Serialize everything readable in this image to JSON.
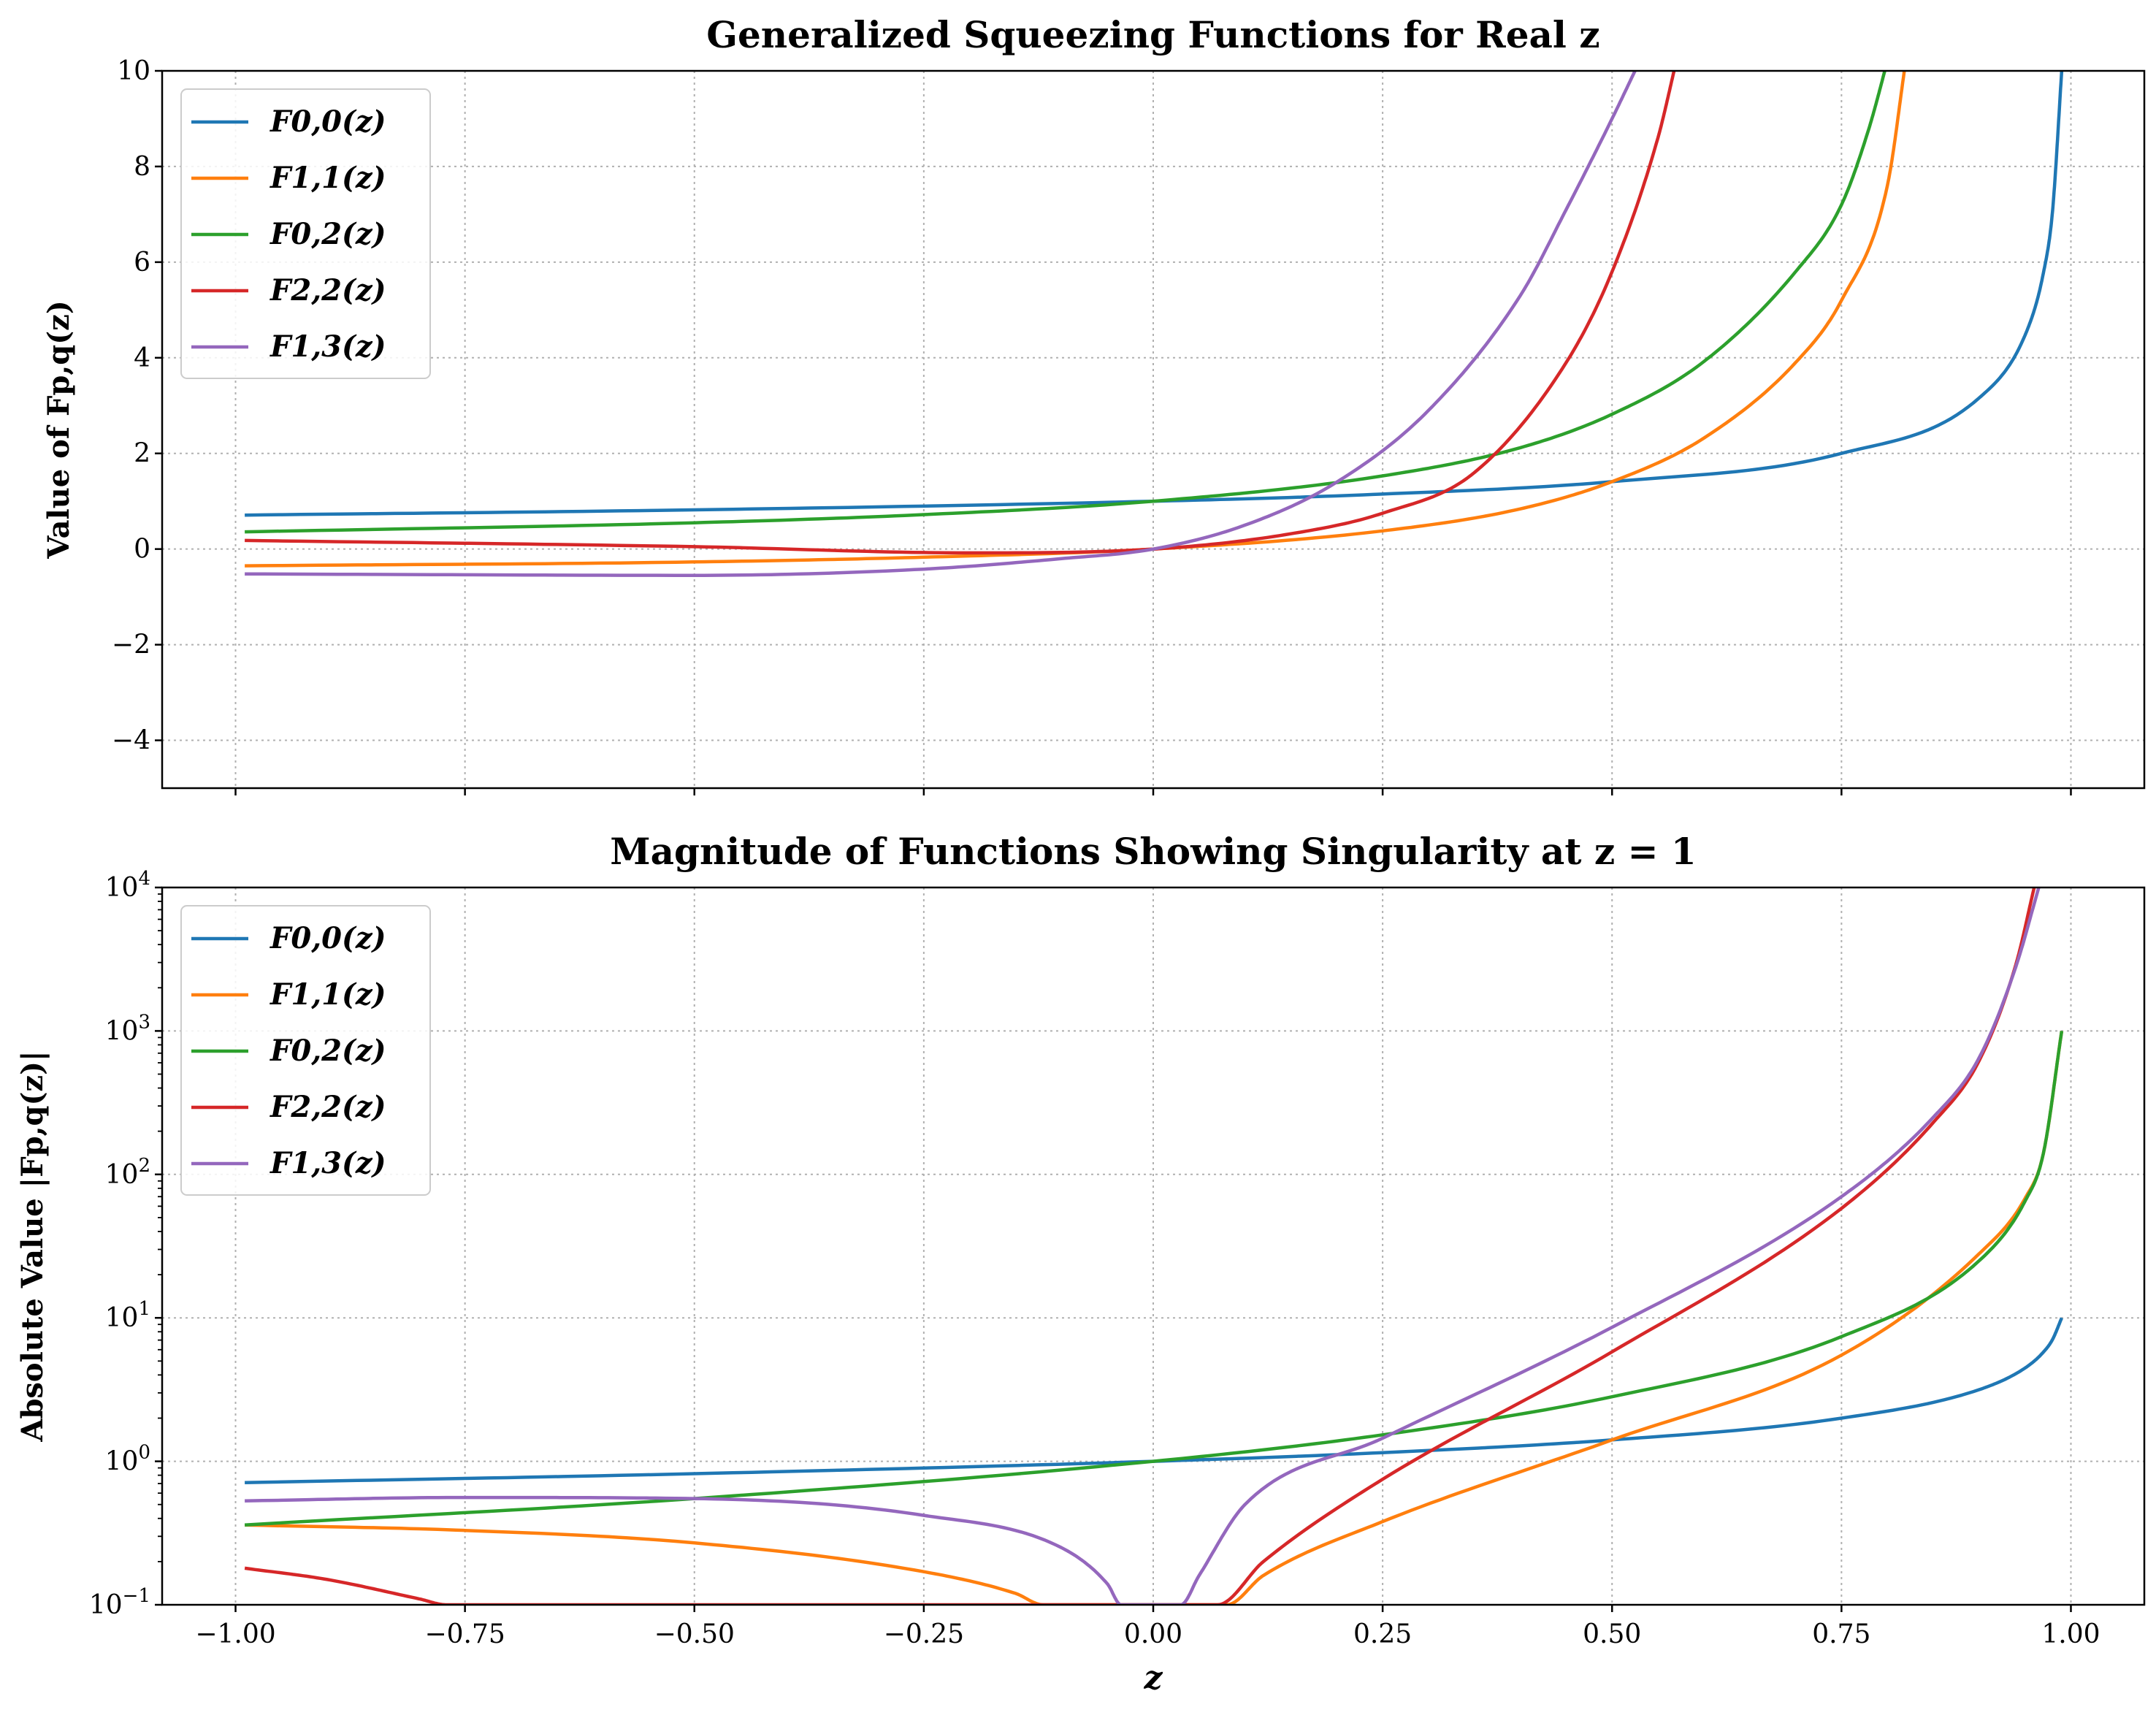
{
  "colors": {
    "F00": "#1f77b4",
    "F11": "#ff7f0e",
    "F02": "#2ca02c",
    "F22": "#d62728",
    "F13": "#9467bd"
  },
  "legend": [
    {
      "key": "F00",
      "label": "F0,0(z)"
    },
    {
      "key": "F11",
      "label": "F1,1(z)"
    },
    {
      "key": "F02",
      "label": "F0,2(z)"
    },
    {
      "key": "F22",
      "label": "F2,2(z)"
    },
    {
      "key": "F13",
      "label": "F1,3(z)"
    }
  ],
  "chart_data": [
    {
      "type": "line",
      "title": "Generalized Squeezing Functions for Real z",
      "ylabel": "Value of Fp,q(z)",
      "xlabel": "",
      "xlim": [
        -1.08,
        1.08
      ],
      "ylim": [
        -5,
        10
      ],
      "yscale": "linear",
      "grid": true,
      "legend_position": "upper-left",
      "xticks": [
        -1.0,
        -0.75,
        -0.5,
        -0.25,
        0.0,
        0.25,
        0.5,
        0.75,
        1.0
      ],
      "yticks": [
        -4,
        -2,
        0,
        2,
        4,
        6,
        8,
        10
      ],
      "ytick_labels": [
        "−4",
        "−2",
        "0",
        "2",
        "4",
        "6",
        "8",
        "10"
      ],
      "series": [
        {
          "name": "F0,0(z)",
          "key": "F00",
          "x": [
            -0.99,
            -0.5,
            0,
            0.25,
            0.5,
            0.75,
            0.9,
            0.95,
            0.97,
            0.98,
            0.99
          ],
          "y": [
            0.71,
            0.82,
            1.0,
            1.15,
            1.41,
            2.0,
            3.16,
            4.47,
            5.77,
            7.07,
            10.0
          ]
        },
        {
          "name": "F1,1(z)",
          "key": "F11",
          "x": [
            -0.99,
            -0.5,
            -0.25,
            0,
            0.25,
            0.4,
            0.5,
            0.6,
            0.7,
            0.75,
            0.8,
            0.82
          ],
          "y": [
            -0.35,
            -0.27,
            -0.17,
            0.0,
            0.38,
            0.84,
            1.41,
            2.32,
            3.9,
            5.2,
            7.6,
            10.2
          ]
        },
        {
          "name": "F0,2(z)",
          "key": "F02",
          "x": [
            -0.99,
            -0.5,
            -0.25,
            0,
            0.25,
            0.4,
            0.5,
            0.6,
            0.7,
            0.75,
            0.78,
            0.8
          ],
          "y": [
            0.36,
            0.55,
            0.72,
            1.0,
            1.53,
            2.12,
            2.82,
            3.92,
            5.8,
            7.2,
            8.8,
            10.2
          ]
        },
        {
          "name": "F2,2(z)",
          "key": "F22",
          "x": [
            -0.99,
            -0.5,
            -0.2,
            0,
            0.15,
            0.25,
            0.35,
            0.45,
            0.5,
            0.55,
            0.57
          ],
          "y": [
            0.18,
            0.05,
            -0.08,
            0.0,
            0.32,
            0.75,
            1.6,
            3.9,
            5.8,
            8.6,
            10.2
          ]
        },
        {
          "name": "F1,3(z)",
          "key": "F13",
          "x": [
            -0.99,
            -0.5,
            -0.25,
            -0.1,
            0,
            0.1,
            0.2,
            0.3,
            0.4,
            0.45,
            0.5,
            0.53
          ],
          "y": [
            -0.52,
            -0.55,
            -0.42,
            -0.2,
            0.0,
            0.5,
            1.4,
            2.9,
            5.3,
            7.1,
            9.0,
            10.2
          ]
        }
      ]
    },
    {
      "type": "line",
      "title": "Magnitude of Functions Showing Singularity at z = 1",
      "ylabel": "Absolute Value |Fp,q(z)|",
      "xlabel": "z",
      "xlim": [
        -1.08,
        1.08
      ],
      "ylim": [
        0.1,
        10000
      ],
      "yscale": "log",
      "grid": true,
      "legend_position": "upper-left",
      "xticks": [
        -1.0,
        -0.75,
        -0.5,
        -0.25,
        0.0,
        0.25,
        0.5,
        0.75,
        1.0
      ],
      "xtick_labels": [
        "−1.00",
        "−0.75",
        "−0.50",
        "−0.25",
        "0.00",
        "0.25",
        "0.50",
        "0.75",
        "1.00"
      ],
      "yticks": [
        0.1,
        1,
        10,
        100,
        1000,
        10000
      ],
      "ytick_exponents": [
        "−1",
        "0",
        "1",
        "2",
        "3",
        "4"
      ],
      "series": [
        {
          "name": "F0,0(z)",
          "key": "F00",
          "x": [
            -0.99,
            -0.5,
            0,
            0.25,
            0.5,
            0.75,
            0.9,
            0.95,
            0.97,
            0.98,
            0.99
          ],
          "y": [
            0.71,
            0.82,
            1.0,
            1.15,
            1.41,
            2.0,
            3.16,
            4.47,
            5.77,
            7.07,
            10.0
          ]
        },
        {
          "name": "F1,1(z)",
          "key": "F11",
          "x": [
            -0.99,
            -0.75,
            -0.5,
            -0.25,
            -0.15,
            -0.12,
            0.08,
            0.12,
            0.25,
            0.5,
            0.75,
            0.9,
            0.95,
            0.97,
            0.99
          ],
          "y": [
            0.36,
            0.33,
            0.27,
            0.17,
            0.12,
            0.1,
            0.1,
            0.16,
            0.38,
            1.41,
            5.5,
            28,
            68,
            140,
            1000
          ]
        },
        {
          "name": "F0,2(z)",
          "key": "F02",
          "x": [
            -0.99,
            -0.5,
            0,
            0.25,
            0.5,
            0.75,
            0.9,
            0.95,
            0.97,
            0.99
          ],
          "y": [
            0.36,
            0.55,
            1.0,
            1.53,
            2.82,
            7.4,
            25,
            65,
            140,
            1000
          ]
        },
        {
          "name": "F2,2(z)",
          "key": "F22",
          "x": [
            -0.99,
            -0.9,
            -0.8,
            -0.77,
            0.07,
            0.12,
            0.25,
            0.5,
            0.75,
            0.85,
            0.9,
            0.94,
            0.96
          ],
          "y": [
            0.18,
            0.15,
            0.11,
            0.1,
            0.1,
            0.2,
            0.75,
            5.8,
            58,
            230,
            620,
            2900,
            10000
          ]
        },
        {
          "name": "F1,3(z)",
          "key": "F13",
          "x": [
            -0.99,
            -0.75,
            -0.5,
            -0.25,
            -0.1,
            -0.05,
            -0.035,
            0.03,
            0.05,
            0.1,
            0.25,
            0.5,
            0.75,
            0.85,
            0.9,
            0.94,
            0.965
          ],
          "y": [
            0.53,
            0.56,
            0.55,
            0.42,
            0.25,
            0.14,
            0.1,
            0.1,
            0.16,
            0.5,
            1.45,
            8.6,
            70,
            250,
            650,
            2800,
            10000
          ]
        }
      ]
    }
  ]
}
